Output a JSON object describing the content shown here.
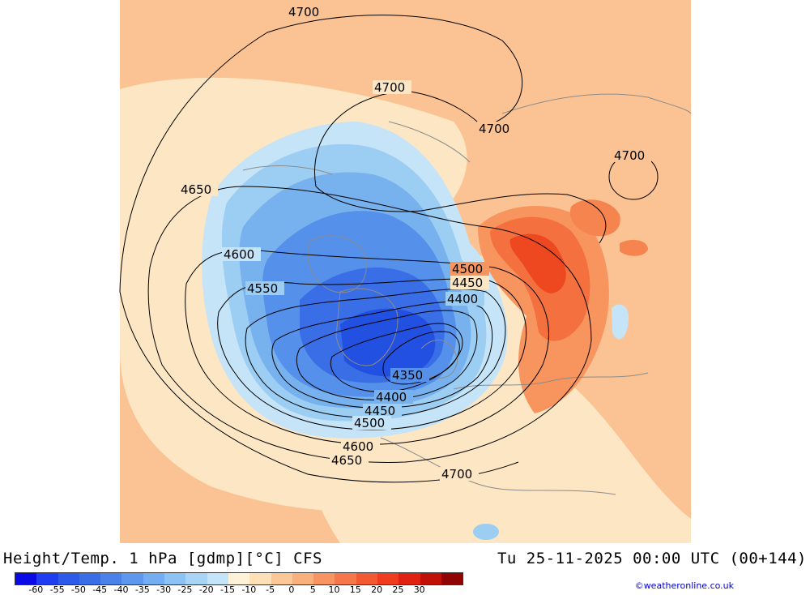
{
  "header": {
    "left_title": "Height/Temp. 1 hPa [gdmp][°C] CFS",
    "right_title": "Tu 25-11-2025 00:00 UTC (00+144)"
  },
  "colorbar": {
    "colors": [
      "#0a0ae6",
      "#1e3cf0",
      "#2d5ae8",
      "#3a6ee6",
      "#4a82ea",
      "#5e98ee",
      "#74aef2",
      "#8cc2f4",
      "#a8d4f6",
      "#c4e4fa",
      "#fdf1d8",
      "#fde0b8",
      "#fcc898",
      "#fab07c",
      "#f89462",
      "#f6784a",
      "#f45a32",
      "#f03c1e",
      "#e02010",
      "#c01008",
      "#900404"
    ],
    "labels": [
      "-60",
      "-55",
      "-50",
      "-45",
      "-40",
      "-35",
      "-30",
      "-25",
      "-20",
      "-15",
      "-10",
      "-5",
      "0",
      "5",
      "10",
      "15",
      "20",
      "25",
      "30"
    ]
  },
  "map": {
    "contour_labels": [
      "4700",
      "4700",
      "4700",
      "4700",
      "4650",
      "4600",
      "4550",
      "4500",
      "4450",
      "4400",
      "4350",
      "4400",
      "4450",
      "4500",
      "4600",
      "4650",
      "4700"
    ]
  },
  "credit": "©weatheronline.co.uk"
}
